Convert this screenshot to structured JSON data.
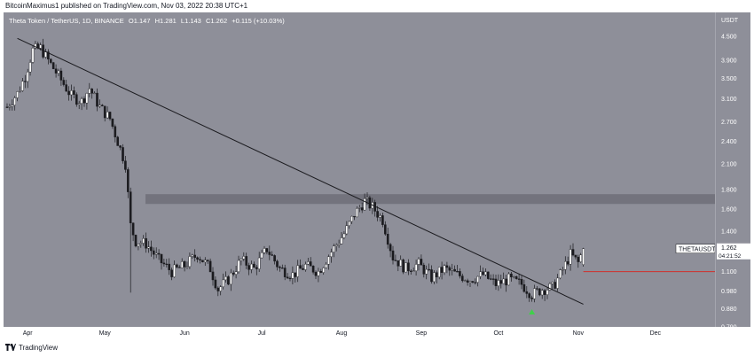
{
  "header": {
    "publisher_line": "BitcoinMaximus1 published on TradingView.com, Nov 03, 2022 20:38 UTC+1"
  },
  "legend": {
    "symbol": "Theta Token / TetherUS, 1D, BINANCE",
    "open_label": "O",
    "open": "1.147",
    "high_label": "H",
    "high": "1.281",
    "low_label": "L",
    "low": "1.143",
    "close_label": "C",
    "close": "1.262",
    "change": "+0.115 (+10.03%)"
  },
  "colors": {
    "background": "#8e8f99",
    "candle_up": "#ffffff",
    "candle_down": "#1b1b1f",
    "trendline": "#1b1b1f",
    "resistance_zone": "#6e6f78",
    "horizontal_line": "#d0312d",
    "arrow": "#3fd14a"
  },
  "axis": {
    "currency": "USDT",
    "price_ticks": [
      "4.500",
      "3.900",
      "3.500",
      "3.100",
      "2.700",
      "2.400",
      "2.100",
      "1.800",
      "1.600",
      "1.400",
      "1.100",
      "0.980",
      "0.880",
      "0.790"
    ],
    "time_ticks": [
      "Apr",
      "May",
      "Jun",
      "Jul",
      "Aug",
      "Sep",
      "Oct",
      "Nov",
      "Dec"
    ],
    "price_label": {
      "symbol": "THETAUSDT",
      "price": "1.262",
      "countdown": "04:21:52"
    }
  },
  "footer": {
    "brand": "TradingView"
  },
  "chart_data": {
    "type": "candlestick",
    "title": "Theta Token / TetherUS, 1D, BINANCE",
    "y_scale": "log",
    "ylim": [
      0.79,
      5.2
    ],
    "x_start": "2022-03-24",
    "x_end": "2022-12-31",
    "keypoints": [
      [
        "2022-03-24",
        2.95
      ],
      [
        "2022-03-28",
        3.2
      ],
      [
        "2022-03-31",
        3.55
      ],
      [
        "2022-04-03",
        4.15
      ],
      [
        "2022-04-06",
        4.2
      ],
      [
        "2022-04-09",
        3.9
      ],
      [
        "2022-04-13",
        3.55
      ],
      [
        "2022-04-18",
        3.15
      ],
      [
        "2022-04-22",
        3.05
      ],
      [
        "2022-04-25",
        3.3
      ],
      [
        "2022-04-29",
        2.95
      ],
      [
        "2022-05-03",
        2.75
      ],
      [
        "2022-05-06",
        2.4
      ],
      [
        "2022-05-09",
        2.1
      ],
      [
        "2022-05-11",
        1.45
      ],
      [
        "2022-05-13",
        1.32
      ],
      [
        "2022-05-17",
        1.3
      ],
      [
        "2022-05-22",
        1.18
      ],
      [
        "2022-05-27",
        1.1
      ],
      [
        "2022-06-01",
        1.14
      ],
      [
        "2022-06-06",
        1.22
      ],
      [
        "2022-06-11",
        1.12
      ],
      [
        "2022-06-14",
        0.99
      ],
      [
        "2022-06-18",
        1.05
      ],
      [
        "2022-06-23",
        1.18
      ],
      [
        "2022-06-28",
        1.12
      ],
      [
        "2022-07-03",
        1.26
      ],
      [
        "2022-07-08",
        1.12
      ],
      [
        "2022-07-13",
        1.08
      ],
      [
        "2022-07-18",
        1.14
      ],
      [
        "2022-07-23",
        1.1
      ],
      [
        "2022-07-28",
        1.24
      ],
      [
        "2022-08-02",
        1.38
      ],
      [
        "2022-08-06",
        1.55
      ],
      [
        "2022-08-10",
        1.68
      ],
      [
        "2022-08-13",
        1.62
      ],
      [
        "2022-08-17",
        1.5
      ],
      [
        "2022-08-21",
        1.2
      ],
      [
        "2022-08-26",
        1.12
      ],
      [
        "2022-08-31",
        1.15
      ],
      [
        "2022-09-05",
        1.06
      ],
      [
        "2022-09-10",
        1.12
      ],
      [
        "2022-09-15",
        1.08
      ],
      [
        "2022-09-20",
        1.05
      ],
      [
        "2022-09-25",
        1.08
      ],
      [
        "2022-09-30",
        1.02
      ],
      [
        "2022-10-05",
        1.05
      ],
      [
        "2022-10-10",
        1.02
      ],
      [
        "2022-10-14",
        0.96
      ],
      [
        "2022-10-18",
        0.99
      ],
      [
        "2022-10-22",
        1.0
      ],
      [
        "2022-10-25",
        1.08
      ],
      [
        "2022-10-29",
        1.22
      ],
      [
        "2022-11-01",
        1.16
      ],
      [
        "2022-11-03",
        1.262
      ]
    ],
    "trendline": {
      "from": [
        "2022-03-28",
        4.45
      ],
      "to": [
        "2022-11-03",
        0.905
      ]
    },
    "resistance_zone": [
      1.65,
      1.75
    ],
    "horizontal_level": {
      "value": 1.1,
      "from": "2022-11-03",
      "to": "2022-12-31"
    },
    "marker": {
      "type": "up-arrow",
      "date": "2022-10-14",
      "price": 0.86
    },
    "last_close": 1.262
  }
}
